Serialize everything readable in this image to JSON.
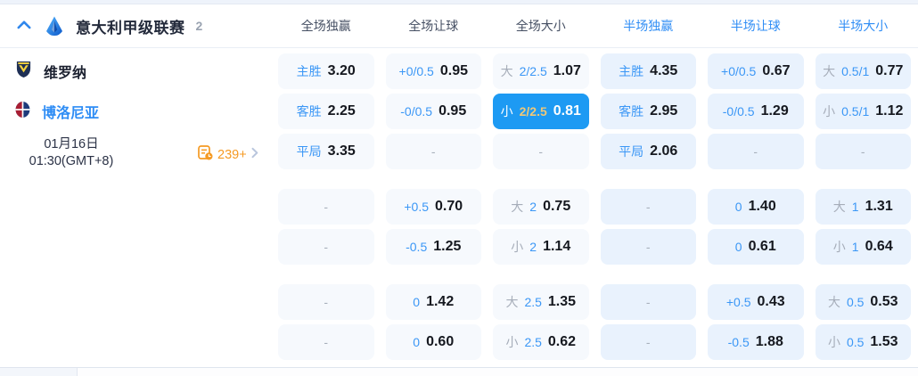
{
  "colors": {
    "accent_blue": "#2f8df5",
    "highlight_cell": "#1d9af3",
    "highlight_handicap_gold": "#f0c878",
    "markets_orange": "#f59a23",
    "fulltime_cell_bg": "#f6f9fd",
    "halftime_cell_bg": "#e9f2fd"
  },
  "header": {
    "league": "意大利甲级联赛",
    "match_count": "2",
    "columns": [
      "全场独赢",
      "全场让球",
      "全场大小",
      "半场独赢",
      "半场让球",
      "半场大小"
    ]
  },
  "match": {
    "home_team": "维罗纳",
    "away_team": "博洛尼亚",
    "date": "01月16日",
    "time": "01:30(GMT+8)",
    "markets_count": "239+"
  },
  "odds": {
    "groups": [
      {
        "rows": [
          {
            "cells": [
              {
                "type": "lab",
                "t1": "主胜",
                "val": "3.20"
              },
              {
                "type": "lab",
                "t1": "+0/0.5",
                "val": "0.95"
              },
              {
                "type": "ou",
                "t1": "大",
                "t2": "2/2.5",
                "val": "1.07"
              },
              {
                "type": "lab",
                "t1": "主胜",
                "val": "4.35"
              },
              {
                "type": "lab",
                "t1": "+0/0.5",
                "val": "0.67"
              },
              {
                "type": "ou",
                "t1": "大",
                "t2": "0.5/1",
                "val": "0.77"
              }
            ]
          },
          {
            "cells": [
              {
                "type": "lab",
                "t1": "客胜",
                "val": "2.25"
              },
              {
                "type": "lab",
                "t1": "-0/0.5",
                "val": "0.95"
              },
              {
                "type": "ou",
                "t1": "小",
                "t2": "2/2.5",
                "val": "0.81",
                "hl": true
              },
              {
                "type": "lab",
                "t1": "客胜",
                "val": "2.95"
              },
              {
                "type": "lab",
                "t1": "-0/0.5",
                "val": "1.29"
              },
              {
                "type": "ou",
                "t1": "小",
                "t2": "0.5/1",
                "val": "1.12"
              }
            ]
          },
          {
            "cells": [
              {
                "type": "lab",
                "t1": "平局",
                "val": "3.35"
              },
              {
                "type": "dash",
                "val": "-"
              },
              {
                "type": "dash",
                "val": "-"
              },
              {
                "type": "lab",
                "t1": "平局",
                "val": "2.06"
              },
              {
                "type": "dash",
                "val": "-"
              },
              {
                "type": "dash",
                "val": "-"
              }
            ]
          }
        ]
      },
      {
        "rows": [
          {
            "cells": [
              {
                "type": "dash",
                "val": "-"
              },
              {
                "type": "lab",
                "t1": "+0.5",
                "val": "0.70"
              },
              {
                "type": "ou",
                "t1": "大",
                "t2": "2",
                "val": "0.75"
              },
              {
                "type": "dash",
                "val": "-"
              },
              {
                "type": "lab",
                "t1": "0",
                "val": "1.40"
              },
              {
                "type": "ou",
                "t1": "大",
                "t2": "1",
                "val": "1.31"
              }
            ]
          },
          {
            "cells": [
              {
                "type": "dash",
                "val": "-"
              },
              {
                "type": "lab",
                "t1": "-0.5",
                "val": "1.25"
              },
              {
                "type": "ou",
                "t1": "小",
                "t2": "2",
                "val": "1.14"
              },
              {
                "type": "dash",
                "val": "-"
              },
              {
                "type": "lab",
                "t1": "0",
                "val": "0.61"
              },
              {
                "type": "ou",
                "t1": "小",
                "t2": "1",
                "val": "0.64"
              }
            ]
          }
        ]
      },
      {
        "rows": [
          {
            "cells": [
              {
                "type": "dash",
                "val": "-"
              },
              {
                "type": "lab",
                "t1": "0",
                "val": "1.42"
              },
              {
                "type": "ou",
                "t1": "大",
                "t2": "2.5",
                "val": "1.35"
              },
              {
                "type": "dash",
                "val": "-"
              },
              {
                "type": "lab",
                "t1": "+0.5",
                "val": "0.43"
              },
              {
                "type": "ou",
                "t1": "大",
                "t2": "0.5",
                "val": "0.53"
              }
            ]
          },
          {
            "cells": [
              {
                "type": "dash",
                "val": "-"
              },
              {
                "type": "lab",
                "t1": "0",
                "val": "0.60"
              },
              {
                "type": "ou",
                "t1": "小",
                "t2": "2.5",
                "val": "0.62"
              },
              {
                "type": "dash",
                "val": "-"
              },
              {
                "type": "lab",
                "t1": "-0.5",
                "val": "1.88"
              },
              {
                "type": "ou",
                "t1": "小",
                "t2": "0.5",
                "val": "1.53"
              }
            ]
          }
        ]
      }
    ]
  }
}
